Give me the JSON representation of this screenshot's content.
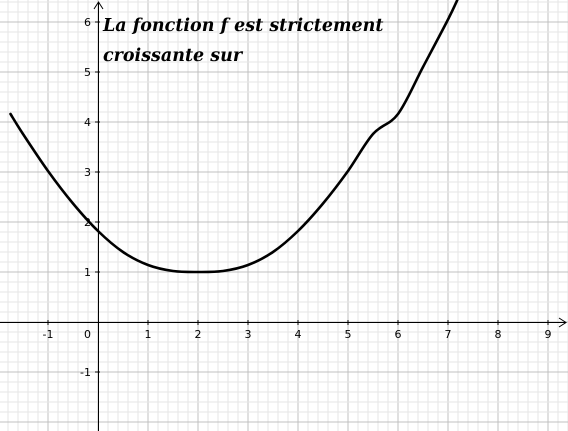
{
  "caption": {
    "line1": "La fonction f est strictement",
    "line2": "croissante sur"
  },
  "chart_data": {
    "type": "line",
    "title": "",
    "xlabel": "",
    "ylabel": "",
    "xlim": [
      -1.75,
      9.6
    ],
    "ylim": [
      -2.1,
      6.3
    ],
    "grid": true,
    "x_ticks": [
      -1,
      1,
      2,
      3,
      4,
      5,
      6,
      7,
      8,
      9
    ],
    "y_ticks": [
      -1,
      1,
      2,
      3,
      4,
      5,
      6
    ],
    "origin_label": "0",
    "series": [
      {
        "name": "",
        "x": [
          -1.75,
          -1.5,
          -1,
          -0.5,
          0,
          0.5,
          1,
          1.5,
          2,
          2.5,
          3,
          3.5,
          4,
          4.5,
          5,
          5.5,
          6,
          6.5,
          7,
          7.2
        ],
        "y": [
          4.16,
          3.76,
          3.02,
          2.37,
          1.82,
          1.4,
          1.14,
          1.02,
          1.0,
          1.02,
          1.14,
          1.4,
          1.82,
          2.37,
          3.02,
          3.76,
          4.16,
          5.1,
          6.05,
          6.47
        ]
      }
    ]
  },
  "colors": {
    "grid_minor": "#e6e6e6",
    "grid_major": "#c0c0c0",
    "axis": "#000000",
    "curve": "#000000"
  }
}
